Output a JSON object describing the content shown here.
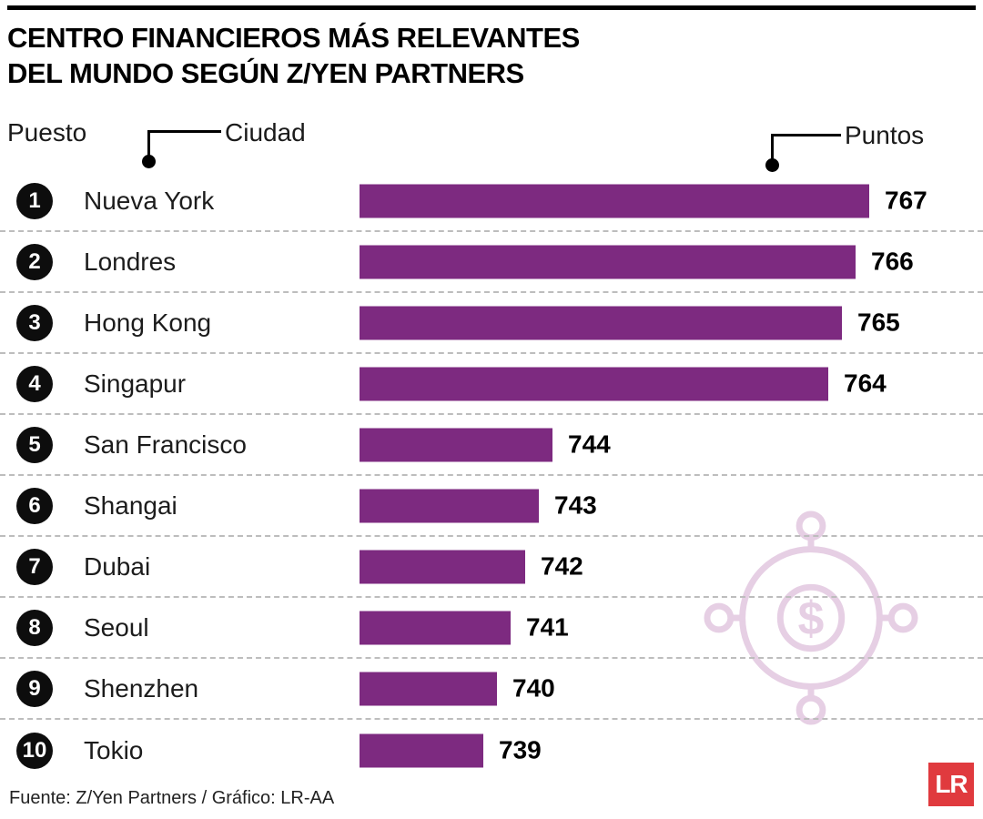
{
  "header": {
    "title_line1": "CENTRO FINANCIEROS MÁS RELEVANTES",
    "title_line2": "DEL MUNDO SEGÚN Z/YEN PARTNERS"
  },
  "legend": {
    "rank_label": "Puesto",
    "city_label": "Ciudad",
    "points_label": "Puntos"
  },
  "chart_data": {
    "type": "bar",
    "orientation": "horizontal",
    "title": "Centro financieros más relevantes del mundo según Z/Yen Partners",
    "categories": [
      "Nueva York",
      "Londres",
      "Hong Kong",
      "Singapur",
      "San Francisco",
      "Shangai",
      "Dubai",
      "Seoul",
      "Shenzhen",
      "Tokio"
    ],
    "ranks": [
      1,
      2,
      3,
      4,
      5,
      6,
      7,
      8,
      9,
      10
    ],
    "values": [
      767,
      766,
      765,
      764,
      744,
      743,
      742,
      741,
      740,
      739
    ],
    "value_axis_label": "Puntos",
    "category_axis_label": "Ciudad",
    "xlim": [
      730,
      767
    ],
    "bar_color": "#7d2a80",
    "grid": "dashed-row-separators",
    "legend_position": "none"
  },
  "watermark": {
    "icon": "dollar-orbit-icon",
    "color": "#e6cfe4"
  },
  "footer": {
    "source": "Fuente: Z/Yen Partners / Gráfico: LR-AA",
    "logo_text": "LR",
    "logo_color": "#e03a3e"
  }
}
